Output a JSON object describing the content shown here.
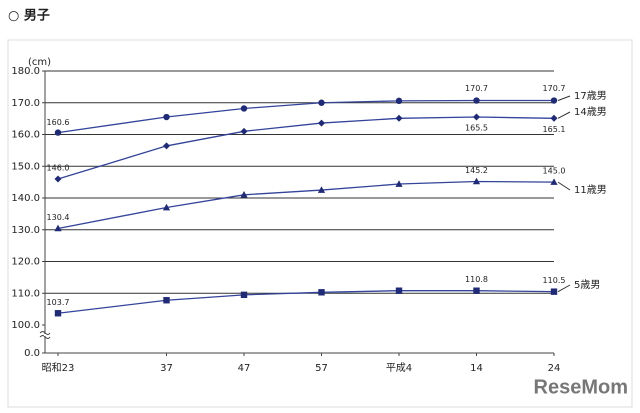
{
  "chart_data": {
    "type": "line",
    "title": "○ 男子",
    "y_unit": "(cm)",
    "watermark": "ReseMom",
    "x": [
      1948,
      1962,
      1972,
      1982,
      1992,
      2002,
      2012
    ],
    "xlim": [
      1946,
      2013
    ],
    "xticks": [
      {
        "value": 1948,
        "label": "昭和23"
      },
      {
        "value": 1962,
        "label": "37"
      },
      {
        "value": 1972,
        "label": "47"
      },
      {
        "value": 1982,
        "label": "57"
      },
      {
        "value": 1992,
        "label": "平成4"
      },
      {
        "value": 2002,
        "label": "14"
      },
      {
        "value": 2012,
        "label": "24"
      }
    ],
    "ylim": [
      100,
      180
    ],
    "axis_break": [
      0,
      100
    ],
    "yticks": [
      {
        "value": 0,
        "label": "0.0"
      },
      {
        "value": 100,
        "label": "100.0"
      },
      {
        "value": 110,
        "label": "110.0"
      },
      {
        "value": 120,
        "label": "120.0"
      },
      {
        "value": 130,
        "label": "130.0"
      },
      {
        "value": 140,
        "label": "140.0"
      },
      {
        "value": 150,
        "label": "150.0"
      },
      {
        "value": 160,
        "label": "160.0"
      },
      {
        "value": 170,
        "label": "170.0"
      },
      {
        "value": 180,
        "label": "180.0"
      }
    ],
    "grid": true,
    "series": [
      {
        "name": "17歳男",
        "color": "#33449a",
        "marker": "circle",
        "values": [
          160.6,
          165.5,
          168.2,
          170.0,
          170.6,
          170.7,
          170.7
        ],
        "value_labels": [
          "160.6",
          null,
          null,
          null,
          null,
          "170.7",
          "170.7"
        ]
      },
      {
        "name": "14歳男",
        "color": "#33449a",
        "marker": "diamond",
        "values": [
          146.0,
          156.4,
          161.0,
          163.6,
          165.1,
          165.5,
          165.1
        ],
        "value_labels": [
          "146.0",
          null,
          null,
          null,
          null,
          "165.5",
          "165.1"
        ]
      },
      {
        "name": "11歳男",
        "color": "#33449a",
        "marker": "triangle",
        "values": [
          130.4,
          137.0,
          141.0,
          142.5,
          144.4,
          145.2,
          145.0
        ],
        "value_labels": [
          "130.4",
          null,
          null,
          null,
          null,
          "145.2",
          "145.0"
        ]
      },
      {
        "name": "5歳男",
        "color": "#33449a",
        "marker": "square",
        "values": [
          103.7,
          107.8,
          109.5,
          110.3,
          110.8,
          110.8,
          110.5
        ],
        "value_labels": [
          "103.7",
          null,
          null,
          null,
          null,
          "110.8",
          "110.5"
        ]
      }
    ]
  }
}
